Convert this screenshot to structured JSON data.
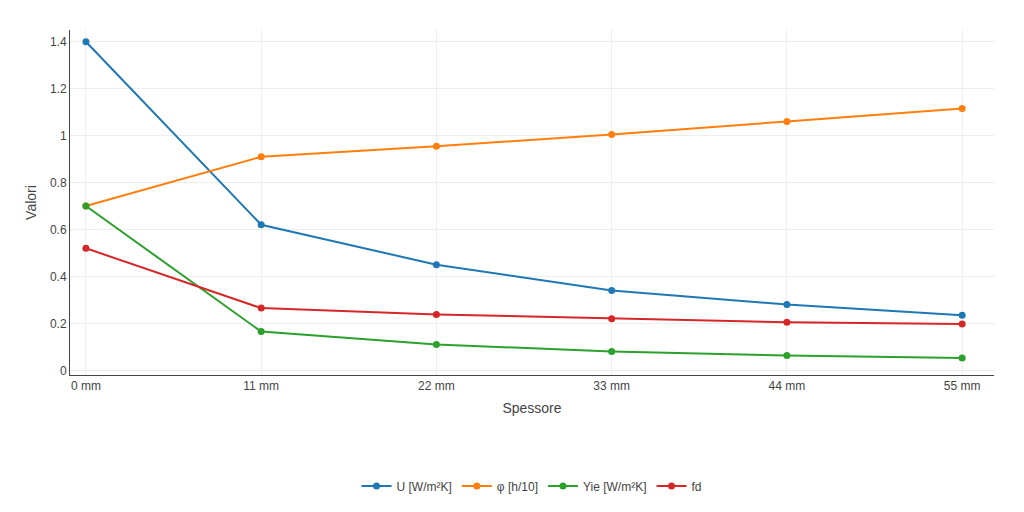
{
  "chart_data": {
    "type": "line",
    "x": [
      0,
      11,
      22,
      33,
      44,
      55
    ],
    "series": [
      {
        "name": "U [W/m²K]",
        "values": [
          1.4,
          0.62,
          0.45,
          0.34,
          0.28,
          0.235
        ]
      },
      {
        "name": "φ [h/10]",
        "values": [
          0.7,
          0.91,
          0.955,
          1.005,
          1.06,
          1.115
        ]
      },
      {
        "name": "Yie [W/m²K]",
        "values": [
          0.7,
          0.165,
          0.11,
          0.08,
          0.063,
          0.052
        ]
      },
      {
        "name": "fd",
        "values": [
          0.52,
          0.265,
          0.238,
          0.22,
          0.205,
          0.197
        ]
      }
    ],
    "x_label": "Spessore",
    "y_label": "Valori",
    "xlim": [
      -1,
      57
    ],
    "xticks": [
      {
        "value": 0,
        "label": "0 mm"
      },
      {
        "value": 11,
        "label": "11 mm"
      },
      {
        "value": 22,
        "label": "22 mm"
      },
      {
        "value": 33,
        "label": "33 mm"
      },
      {
        "value": 44,
        "label": "44 mm"
      },
      {
        "value": 55,
        "label": "55 mm"
      }
    ],
    "ylim": [
      -0.02,
      1.45
    ],
    "yticks": [
      0,
      0.2,
      0.4,
      0.6,
      0.8,
      1.0,
      1.2,
      1.4
    ],
    "grid": true,
    "legend": "bottom",
    "marker": "circle",
    "line_style": "solid"
  }
}
